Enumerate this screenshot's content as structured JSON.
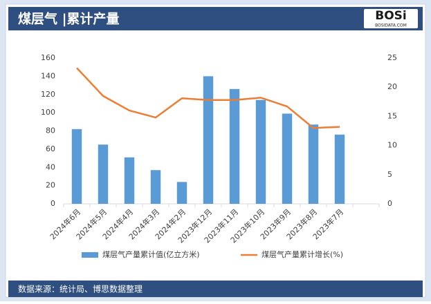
{
  "header": {
    "logo": "BOSi",
    "logo_sub": "BOSIDATA.COM"
  },
  "chart_data": {
    "type": "bar_line",
    "title": "煤层气 |累计产量",
    "source": "数据来源：统计局、博思数据整理",
    "categories": [
      "2024年6月",
      "2024年5月",
      "2024年4月",
      "2024年3月",
      "2024年2月",
      "2023年12月",
      "2023年11月",
      "2023年10月",
      "2023年9月",
      "2023年8月",
      "2023年7月",
      null
    ],
    "series": [
      {
        "name": "煤层气产量累计值(亿立方米)",
        "color": "#5b9bd5",
        "kind": "bar",
        "values": [
          82,
          65,
          51,
          37,
          24,
          140,
          126,
          114,
          99,
          87,
          76,
          null
        ]
      },
      {
        "name": "煤层气产量累计增长(%)",
        "color": "#ed7d31",
        "kind": "line",
        "axis": "y2",
        "values": [
          23.3,
          18.5,
          16,
          14.8,
          18.1,
          17.8,
          17.8,
          18.2,
          16.7,
          13,
          13.2,
          null
        ]
      }
    ],
    "ylim": [
      0,
      160
    ],
    "yticks": [
      0,
      20,
      40,
      60,
      80,
      100,
      120,
      140,
      160
    ],
    "y2lim": [
      0,
      25
    ],
    "y2ticks": [
      0,
      5,
      10,
      15,
      20,
      25
    ],
    "grid": false
  }
}
